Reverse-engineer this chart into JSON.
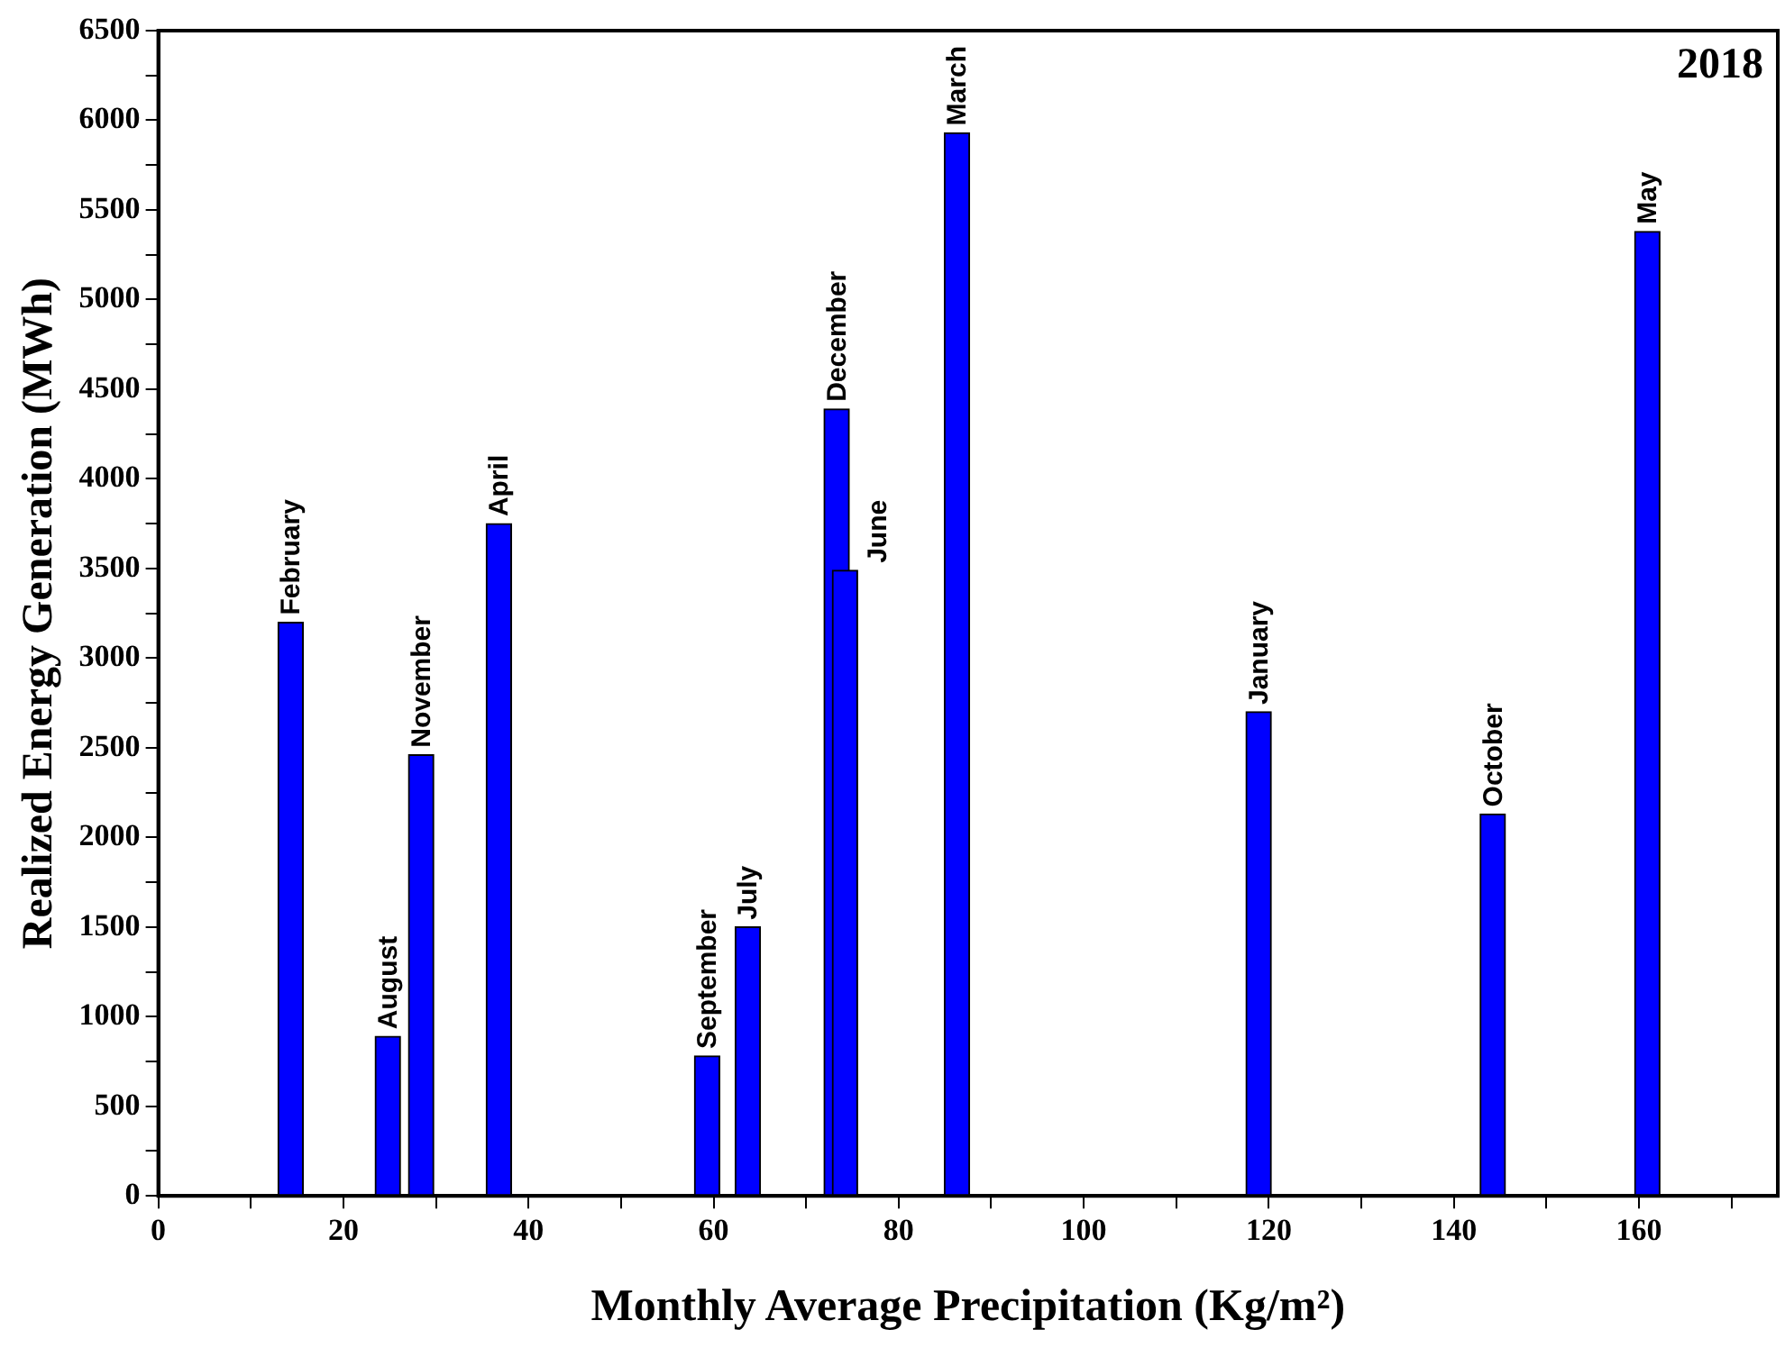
{
  "chart_data": {
    "type": "bar",
    "xlabel": "Monthly Average Precipitation (Kg/m²)",
    "ylabel": "Realized Energy Generation (MWh)",
    "x": [
      14.3,
      24.8,
      28.4,
      36.8,
      59.3,
      63.7,
      73.3,
      74.2,
      86.3,
      118.9,
      144.2,
      160.9
    ],
    "values": [
      3200,
      890,
      2460,
      3750,
      780,
      1500,
      4390,
      3490,
      5930,
      2700,
      2130,
      5380
    ],
    "color": "#0000ff",
    "xlim": [
      0,
      175
    ],
    "xticks": [
      0,
      {
        "value": 10,
        "label": null
      },
      20,
      {
        "value": 30,
        "label": null
      },
      40,
      {
        "value": 50,
        "label": null
      },
      60,
      {
        "value": 70,
        "label": null
      },
      80,
      {
        "value": 90,
        "label": null
      },
      100,
      {
        "value": 110,
        "label": null
      },
      120,
      {
        "value": 130,
        "label": null
      },
      140,
      {
        "value": 150,
        "label": null
      },
      160,
      {
        "value": 170,
        "label": null
      }
    ],
    "ylim": [
      0,
      6500
    ],
    "yticks": [
      0,
      {
        "value": 250,
        "label": null
      },
      500,
      {
        "value": 750,
        "label": null
      },
      1000,
      {
        "value": 1250,
        "label": null
      },
      1500,
      {
        "value": 1750,
        "label": null
      },
      2000,
      {
        "value": 2250,
        "label": null
      },
      2500,
      {
        "value": 2750,
        "label": null
      },
      3000,
      {
        "value": 3250,
        "label": null
      },
      3500,
      {
        "value": 3750,
        "label": null
      },
      4000,
      {
        "value": 4250,
        "label": null
      },
      4500,
      {
        "value": 4750,
        "label": null
      },
      5000,
      {
        "value": 5250,
        "label": null
      },
      5500,
      {
        "value": 5750,
        "label": null
      },
      6000,
      {
        "value": 6250,
        "label": null
      },
      6500
    ],
    "annotations": [
      "2018",
      {
        "text": "February",
        "x": 14.3,
        "y": 3200
      },
      {
        "text": "August",
        "x": 24.8,
        "y": 890
      },
      {
        "text": "November",
        "x": 28.4,
        "y": 2460
      },
      {
        "text": "April",
        "x": 36.8,
        "y": 3750
      },
      {
        "text": "September",
        "x": 59.3,
        "y": 780
      },
      {
        "text": "July",
        "x": 63.7,
        "y": 1500
      },
      {
        "text": "June",
        "x": 74.2,
        "y": 3490
      },
      {
        "text": "December",
        "x": 73.3,
        "y": 4390
      },
      {
        "text": "March",
        "x": 86.3,
        "y": 5930
      },
      {
        "text": "January",
        "x": 118.9,
        "y": 2700
      },
      {
        "text": "October",
        "x": 144.2,
        "y": 2130
      },
      {
        "text": "May",
        "x": 160.9,
        "y": 5380
      }
    ],
    "grid": false,
    "legend": false
  }
}
